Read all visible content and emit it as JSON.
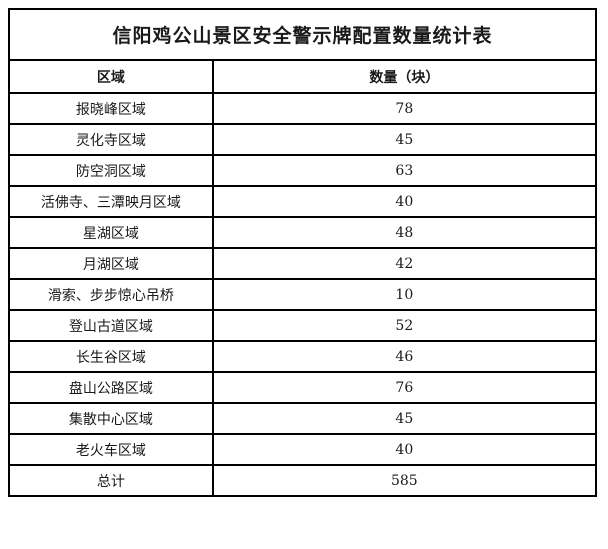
{
  "page": {
    "title": "信阳鸡公山景区安全警示牌配置数量统计表"
  },
  "table": {
    "headers": {
      "region": "区域",
      "quantity": "数量（块）"
    },
    "rows": [
      {
        "region": "报晓峰区域",
        "quantity": "78"
      },
      {
        "region": "灵化寺区域",
        "quantity": "45"
      },
      {
        "region": "防空洞区域",
        "quantity": "63"
      },
      {
        "region": "活佛寺、三潭映月区域",
        "quantity": "40"
      },
      {
        "region": "星湖区域",
        "quantity": "48"
      },
      {
        "region": "月湖区域",
        "quantity": "42"
      },
      {
        "region": "滑索、步步惊心吊桥",
        "quantity": "10"
      },
      {
        "region": "登山古道区域",
        "quantity": "52"
      },
      {
        "region": "长生谷区域",
        "quantity": "46"
      },
      {
        "region": "盘山公路区域",
        "quantity": "76"
      },
      {
        "region": "集散中心区域",
        "quantity": "45"
      },
      {
        "region": "老火车区域",
        "quantity": "40"
      }
    ],
    "total_row": {
      "label": "总计",
      "value": "585"
    }
  },
  "colors": {
    "background": "#ffffff",
    "border": "#000000",
    "text": "#1a1a1a"
  }
}
